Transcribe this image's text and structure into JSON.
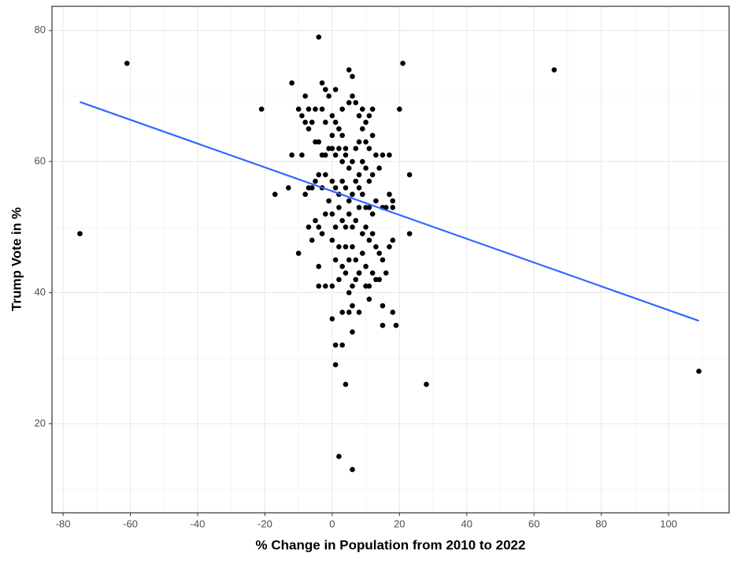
{
  "chart_data": {
    "type": "scatter",
    "x_label": "% Change in Population from 2010 to 2022",
    "y_label": "Trump Vote in %",
    "xlim": [
      -83.3,
      118.0
    ],
    "ylim": [
      6.4,
      83.7
    ],
    "xticks": [
      -80,
      -60,
      -40,
      -20,
      0,
      20,
      40,
      60,
      80,
      100
    ],
    "yticks": [
      20,
      40,
      60,
      80
    ],
    "grid": true,
    "color": "#000000",
    "x": [
      -75,
      -61,
      -21,
      -17,
      -4,
      21,
      20,
      23,
      23,
      28,
      66,
      109,
      2,
      6,
      4,
      1,
      1,
      3,
      0,
      5,
      3,
      6,
      8,
      15,
      15,
      19,
      18,
      11,
      -12,
      -12,
      -13,
      -10,
      -9,
      -8,
      -8,
      -7,
      -7,
      -6,
      -5,
      -5,
      -4,
      -3,
      -3,
      -2,
      -2,
      -1,
      0,
      1,
      0,
      0,
      1,
      2,
      3,
      3,
      4,
      5,
      5,
      6,
      6,
      7,
      8,
      9,
      10,
      11,
      12,
      7,
      8,
      9,
      10,
      11,
      12,
      13,
      14,
      15,
      17,
      12,
      11,
      10,
      9,
      8,
      6,
      5,
      4,
      3,
      2,
      1,
      -1,
      -2,
      -3,
      -4,
      -5,
      -6,
      -7,
      -8,
      -9,
      -3,
      -2,
      0,
      1,
      2,
      3,
      4,
      5,
      6,
      7,
      8,
      9,
      10,
      11,
      12,
      13,
      15,
      16,
      17,
      18,
      18,
      -1,
      0,
      1,
      2,
      3,
      4,
      5,
      6,
      7,
      8,
      9,
      10,
      11,
      12,
      13,
      14,
      17,
      18,
      -6,
      -5,
      -4,
      -3,
      -2,
      -7,
      -10,
      0,
      1,
      2,
      3,
      4,
      5,
      6,
      7,
      8,
      9,
      10,
      11,
      12,
      13,
      14,
      15,
      16,
      -4,
      -4,
      -2,
      0,
      2,
      4,
      6,
      7,
      8,
      10,
      6,
      5
    ],
    "values": [
      49,
      75,
      68,
      55,
      79,
      75,
      68,
      58,
      49,
      26,
      74,
      28,
      15,
      13,
      26,
      29,
      32,
      32,
      36,
      37,
      37,
      34,
      37,
      38,
      35,
      35,
      37,
      39,
      72,
      61,
      56,
      68,
      67,
      66,
      70,
      65,
      68,
      66,
      63,
      68,
      63,
      68,
      72,
      71,
      66,
      70,
      67,
      71,
      64,
      62,
      66,
      65,
      68,
      64,
      62,
      74,
      69,
      73,
      70,
      69,
      67,
      68,
      66,
      67,
      68,
      62,
      63,
      65,
      63,
      62,
      64,
      61,
      59,
      61,
      61,
      58,
      57,
      59,
      60,
      58,
      60,
      59,
      61,
      60,
      62,
      61,
      62,
      61,
      61,
      58,
      57,
      56,
      56,
      55,
      61,
      56,
      58,
      57,
      56,
      55,
      57,
      56,
      54,
      55,
      57,
      56,
      55,
      53,
      53,
      52,
      54,
      53,
      53,
      55,
      53,
      54,
      54,
      52,
      50,
      53,
      51,
      50,
      52,
      50,
      51,
      53,
      49,
      50,
      48,
      49,
      47,
      46,
      47,
      48,
      48,
      51,
      50,
      49,
      52,
      50,
      46,
      48,
      45,
      47,
      44,
      47,
      45,
      47,
      45,
      43,
      46,
      44,
      41,
      43,
      42,
      42,
      45,
      43,
      44,
      41,
      41,
      41,
      42,
      43,
      41,
      42,
      43,
      41,
      38,
      40
    ],
    "trend_line": {
      "color": "#3366ff",
      "x": [
        -75,
        109
      ],
      "values": [
        69.1,
        35.7
      ]
    }
  }
}
